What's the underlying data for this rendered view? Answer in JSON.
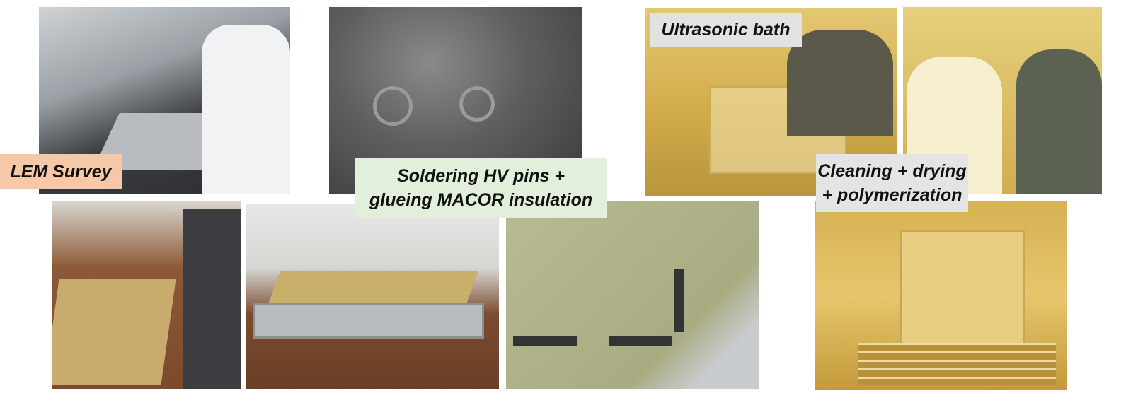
{
  "labels": {
    "lem_survey": "LEM Survey",
    "soldering": [
      "Soldering HV pins +",
      "glueing MACOR insulation"
    ],
    "ultrasonic": "Ultrasonic bath",
    "cleaning": [
      "Cleaning + drying",
      "+ polymerization"
    ]
  }
}
